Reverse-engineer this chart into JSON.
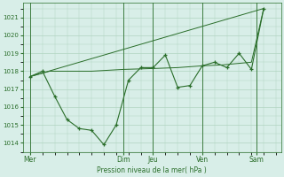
{
  "background_color": "#d8eee8",
  "plot_bg_color": "#d8eee8",
  "grid_color": "#b0d4c0",
  "line_color": "#2a6e2a",
  "xlabel": "Pression niveau de la mer( hPa )",
  "ylim": [
    1013.5,
    1021.8
  ],
  "yticks": [
    1014,
    1015,
    1016,
    1017,
    1018,
    1019,
    1020,
    1021
  ],
  "xlim": [
    -0.3,
    10.2
  ],
  "day_labels": [
    "Mer",
    "Dim",
    "Jeu",
    "Ven",
    "Sam"
  ],
  "day_positions": [
    0.0,
    3.8,
    5.0,
    7.0,
    9.2
  ],
  "vline_positions": [
    0.0,
    3.8,
    5.0,
    7.0,
    9.2
  ],
  "line1_x": [
    0.0,
    0.5,
    1.0,
    1.5,
    2.0,
    2.5,
    3.0,
    3.5,
    4.0,
    4.5,
    5.0,
    5.5,
    6.0,
    6.5,
    7.0,
    7.5,
    8.0,
    8.5,
    9.0,
    9.5
  ],
  "line1_y": [
    1017.7,
    1018.0,
    1016.6,
    1015.3,
    1014.8,
    1014.7,
    1013.9,
    1015.0,
    1017.5,
    1018.2,
    1018.2,
    1018.9,
    1017.1,
    1017.2,
    1018.3,
    1018.5,
    1018.2,
    1019.0,
    1018.1,
    1021.5
  ],
  "line2_x": [
    0.0,
    0.8,
    1.5,
    2.5,
    3.8,
    5.0,
    6.0,
    7.0,
    7.8,
    9.0,
    9.5
  ],
  "line2_y": [
    1017.7,
    1018.0,
    1018.0,
    1018.0,
    1018.1,
    1018.15,
    1018.2,
    1018.3,
    1018.35,
    1018.5,
    1021.5
  ],
  "line3_x": [
    0.0,
    9.5
  ],
  "line3_y": [
    1017.7,
    1021.5
  ]
}
